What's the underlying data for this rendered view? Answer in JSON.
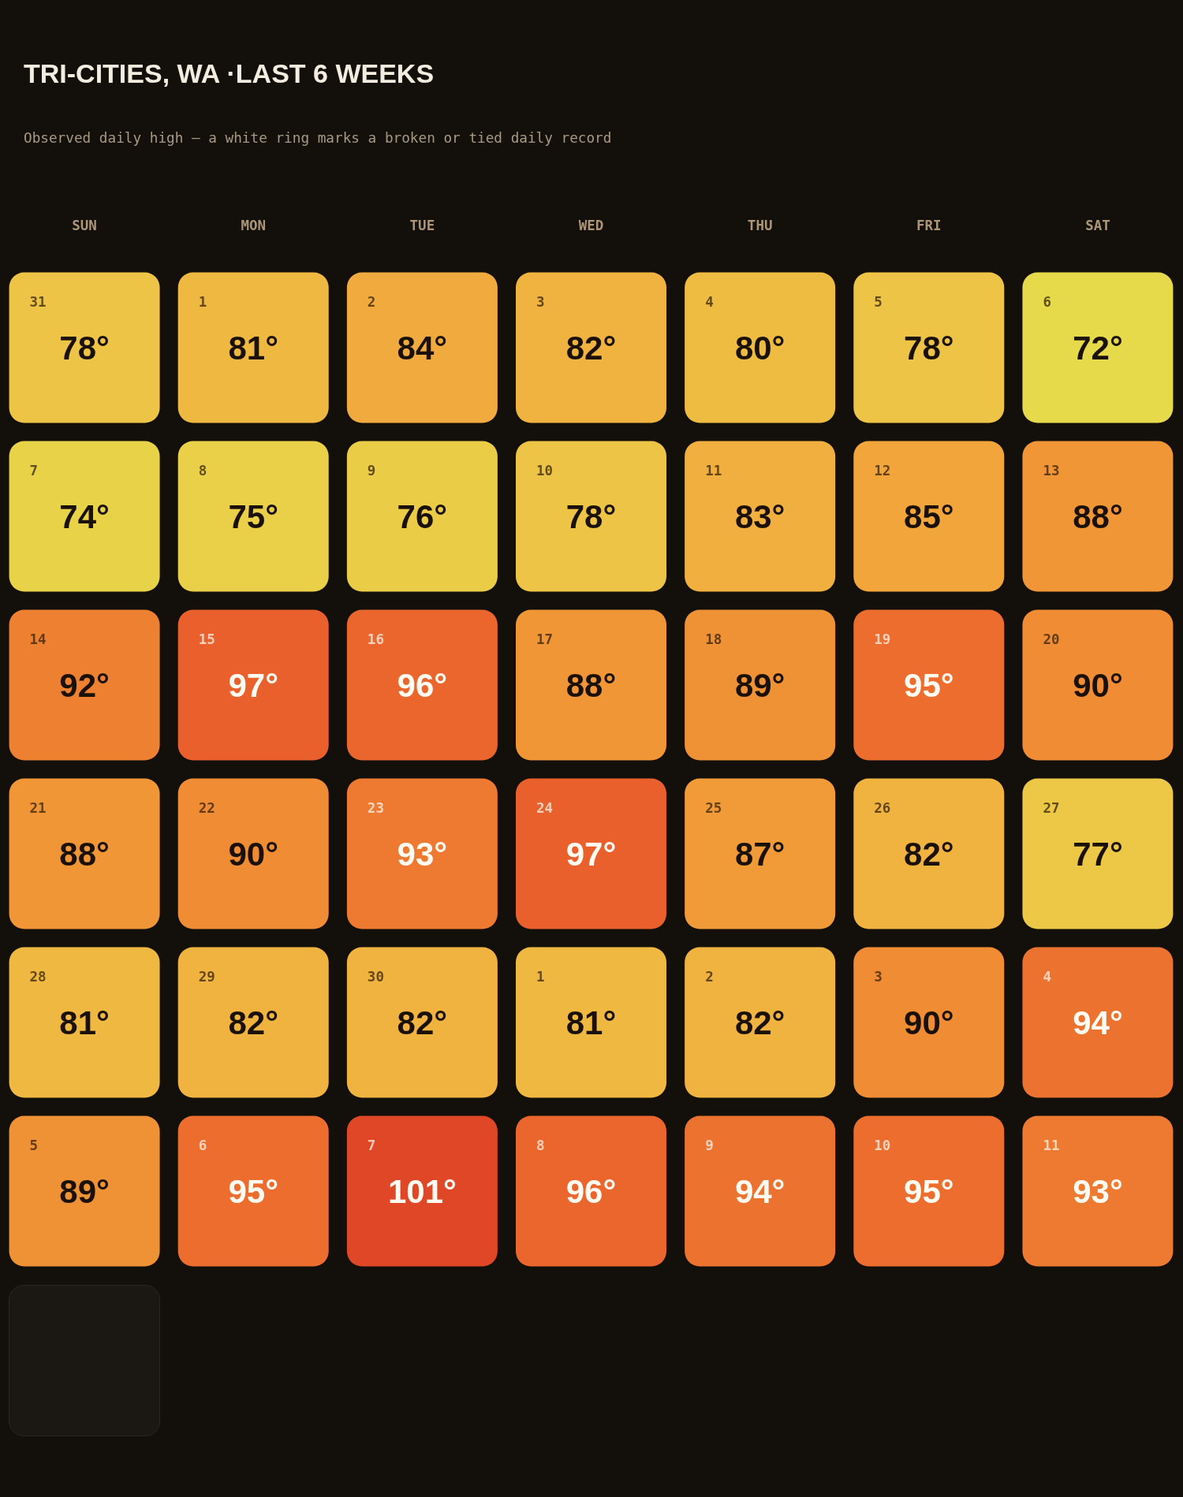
{
  "chart_data": {
    "type": "heatmap",
    "title": "TRI-CITIES, WA ·LAST 6 WEEKS",
    "subtitle": "Observed daily high — a white ring marks a broken or tied daily record",
    "categories": [
      "SUN",
      "MON",
      "TUE",
      "WED",
      "THU",
      "FRI",
      "SAT"
    ],
    "y_categories": [
      null,
      null,
      null,
      null,
      null,
      null
    ],
    "cells": [
      [
        78,
        81,
        84,
        82,
        80,
        78,
        72
      ],
      [
        74,
        75,
        76,
        78,
        83,
        85,
        88
      ],
      [
        92,
        97,
        96,
        88,
        89,
        95,
        90
      ],
      [
        88,
        90,
        93,
        97,
        87,
        82,
        77
      ],
      [
        81,
        82,
        82,
        81,
        82,
        90,
        94
      ],
      [
        89,
        95,
        101,
        96,
        94,
        95,
        93
      ]
    ],
    "cell_labels": [
      [
        "78°",
        "81°",
        "84°",
        "82°",
        "80°",
        "78°",
        "72°"
      ],
      [
        "74°",
        "75°",
        "76°",
        "78°",
        "83°",
        "85°",
        "88°"
      ],
      [
        "92°",
        "97°",
        "96°",
        "88°",
        "89°",
        "95°",
        "90°"
      ],
      [
        "88°",
        "90°",
        "93°",
        "97°",
        "87°",
        "82°",
        "77°"
      ],
      [
        "81°",
        "82°",
        "82°",
        "81°",
        "82°",
        "90°",
        "94°"
      ],
      [
        "89°",
        "95°",
        "101°",
        "96°",
        "94°",
        "95°",
        "93°"
      ]
    ],
    "annotations": [
      "31",
      "1",
      "2",
      "3",
      "4",
      "5",
      "6",
      "7",
      "8",
      "9",
      "10",
      "11",
      "12",
      "13",
      "14",
      "15",
      "16",
      "17",
      "18",
      "19",
      "20",
      "21",
      "22",
      "23",
      "24",
      "25",
      "26",
      "27",
      "28",
      "29",
      "30",
      "1",
      "2",
      "3",
      "4",
      "5",
      "6",
      "7",
      "8",
      "9",
      "10",
      "11"
    ]
  }
}
